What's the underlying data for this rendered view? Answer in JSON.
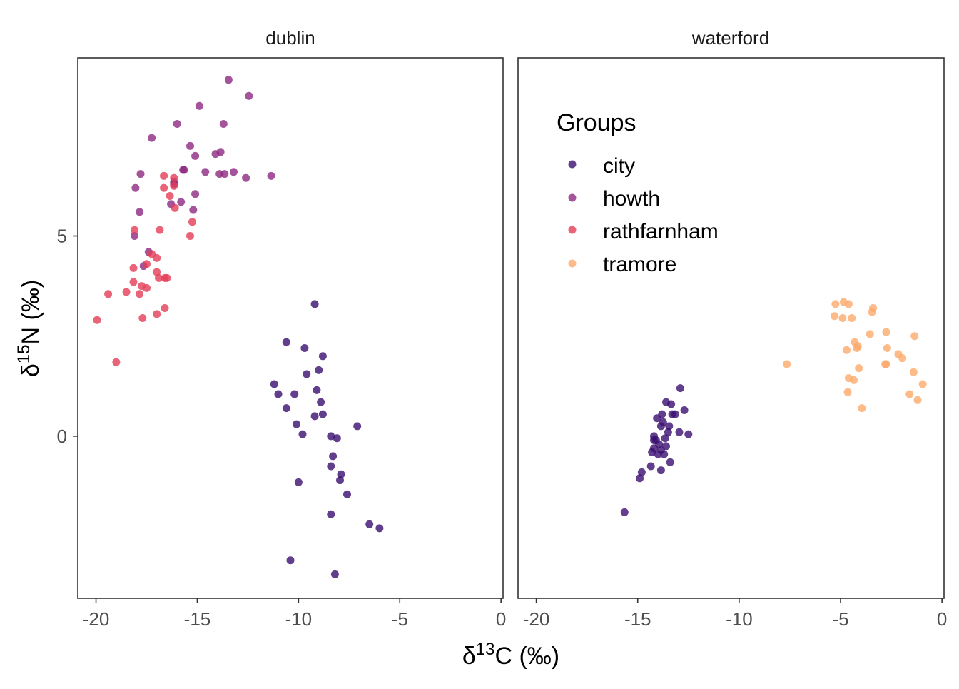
{
  "chart_data": {
    "type": "scatter",
    "xlabel_base": "δ",
    "xlabel_sup": "13",
    "xlabel_rest": "C (‰)",
    "ylabel_base": "δ",
    "ylabel_sup": "15",
    "ylabel_rest": "N (‰)",
    "xlim": [
      -20.9,
      0.1
    ],
    "ylim": [
      -4.05,
      9.45
    ],
    "xticks": [
      -20,
      -15,
      -10,
      -5,
      0
    ],
    "yticks": [
      0,
      5
    ],
    "legend": {
      "title": "Groups",
      "placement": "inside waterford panel, top-left",
      "entries": [
        {
          "name": "city",
          "color": "#3b0f70"
        },
        {
          "name": "howth",
          "color": "#8c2981"
        },
        {
          "name": "rathfarnham",
          "color": "#e43d56"
        },
        {
          "name": "tramore",
          "color": "#fdaa6c"
        }
      ]
    },
    "panels": [
      {
        "strip": "dublin",
        "series": [
          {
            "name": "city",
            "points": [
              [
                -9.2,
                3.3
              ],
              [
                -10.6,
                2.35
              ],
              [
                -9.7,
                2.2
              ],
              [
                -8.8,
                2.0
              ],
              [
                -9.6,
                1.55
              ],
              [
                -9.0,
                1.65
              ],
              [
                -11.2,
                1.3
              ],
              [
                -11.0,
                1.05
              ],
              [
                -10.2,
                1.05
              ],
              [
                -9.1,
                1.15
              ],
              [
                -8.9,
                0.85
              ],
              [
                -10.6,
                0.7
              ],
              [
                -9.2,
                0.5
              ],
              [
                -8.8,
                0.55
              ],
              [
                -10.1,
                0.3
              ],
              [
                -7.1,
                0.25
              ],
              [
                -9.8,
                0.05
              ],
              [
                -8.4,
                0.0
              ],
              [
                -8.1,
                -0.05
              ],
              [
                -8.3,
                -0.5
              ],
              [
                -8.4,
                -0.75
              ],
              [
                -7.9,
                -0.95
              ],
              [
                -10.0,
                -1.15
              ],
              [
                -7.95,
                -1.1
              ],
              [
                -7.6,
                -1.45
              ],
              [
                -8.4,
                -1.95
              ],
              [
                -6.5,
                -2.2
              ],
              [
                -6.0,
                -2.3
              ],
              [
                -10.4,
                -3.1
              ],
              [
                -8.2,
                -3.45
              ]
            ]
          },
          {
            "name": "howth",
            "points": [
              [
                -13.45,
                8.9
              ],
              [
                -12.45,
                8.5
              ],
              [
                -14.9,
                8.25
              ],
              [
                -13.7,
                7.8
              ],
              [
                -16.0,
                7.8
              ],
              [
                -17.25,
                7.45
              ],
              [
                -15.35,
                7.25
              ],
              [
                -15.1,
                7.0
              ],
              [
                -14.1,
                7.05
              ],
              [
                -13.85,
                7.1
              ],
              [
                -17.8,
                6.55
              ],
              [
                -15.7,
                6.65
              ],
              [
                -15.65,
                6.65
              ],
              [
                -14.6,
                6.6
              ],
              [
                -13.9,
                6.55
              ],
              [
                -13.65,
                6.55
              ],
              [
                -13.2,
                6.6
              ],
              [
                -12.6,
                6.45
              ],
              [
                -11.35,
                6.5
              ],
              [
                -16.15,
                6.35
              ],
              [
                -16.15,
                6.3
              ],
              [
                -18.05,
                6.2
              ],
              [
                -15.1,
                6.05
              ],
              [
                -15.8,
                5.85
              ],
              [
                -16.3,
                5.8
              ],
              [
                -15.2,
                5.65
              ],
              [
                -17.85,
                5.6
              ],
              [
                -18.1,
                5.0
              ],
              [
                -17.4,
                4.6
              ],
              [
                -17.65,
                4.25
              ]
            ]
          },
          {
            "name": "rathfarnham",
            "points": [
              [
                -16.65,
                6.5
              ],
              [
                -16.15,
                6.45
              ],
              [
                -16.15,
                6.25
              ],
              [
                -16.65,
                6.2
              ],
              [
                -16.35,
                6.0
              ],
              [
                -16.1,
                5.7
              ],
              [
                -15.25,
                5.35
              ],
              [
                -16.85,
                5.15
              ],
              [
                -18.1,
                5.15
              ],
              [
                -15.35,
                5.0
              ],
              [
                -17.25,
                4.55
              ],
              [
                -17.0,
                4.45
              ],
              [
                -17.5,
                4.3
              ],
              [
                -18.15,
                4.2
              ],
              [
                -17.0,
                4.1
              ],
              [
                -16.9,
                3.95
              ],
              [
                -16.6,
                3.95
              ],
              [
                -16.5,
                3.95
              ],
              [
                -18.15,
                3.85
              ],
              [
                -17.75,
                3.75
              ],
              [
                -17.5,
                3.7
              ],
              [
                -18.5,
                3.6
              ],
              [
                -19.4,
                3.55
              ],
              [
                -17.85,
                3.55
              ],
              [
                -16.6,
                3.2
              ],
              [
                -17.0,
                3.05
              ],
              [
                -17.7,
                2.95
              ],
              [
                -19.95,
                2.9
              ],
              [
                -19.0,
                1.85
              ]
            ]
          }
        ]
      },
      {
        "strip": "waterford",
        "series": [
          {
            "name": "city",
            "points": [
              [
                -12.9,
                1.2
              ],
              [
                -13.6,
                0.85
              ],
              [
                -13.35,
                0.8
              ],
              [
                -12.7,
                0.65
              ],
              [
                -13.8,
                0.55
              ],
              [
                -13.3,
                0.55
              ],
              [
                -13.15,
                0.55
              ],
              [
                -14.05,
                0.45
              ],
              [
                -13.75,
                0.35
              ],
              [
                -13.85,
                0.25
              ],
              [
                -13.45,
                0.25
              ],
              [
                -13.5,
                0.1
              ],
              [
                -12.95,
                0.1
              ],
              [
                -12.5,
                0.05
              ],
              [
                -14.2,
                0.0
              ],
              [
                -13.65,
                -0.05
              ],
              [
                -14.2,
                -0.1
              ],
              [
                -14.1,
                -0.1
              ],
              [
                -13.95,
                -0.2
              ],
              [
                -13.6,
                -0.25
              ],
              [
                -14.2,
                -0.3
              ],
              [
                -13.85,
                -0.35
              ],
              [
                -14.3,
                -0.4
              ],
              [
                -14.0,
                -0.45
              ],
              [
                -13.7,
                -0.45
              ],
              [
                -13.4,
                -0.65
              ],
              [
                -14.35,
                -0.75
              ],
              [
                -13.85,
                -0.85
              ],
              [
                -14.8,
                -0.9
              ],
              [
                -14.9,
                -1.05
              ],
              [
                -15.65,
                -1.9
              ]
            ]
          },
          {
            "name": "tramore",
            "points": [
              [
                -5.25,
                3.3
              ],
              [
                -4.85,
                3.35
              ],
              [
                -4.6,
                3.3
              ],
              [
                -3.4,
                3.2
              ],
              [
                -3.45,
                3.1
              ],
              [
                -5.3,
                3.0
              ],
              [
                -4.9,
                2.95
              ],
              [
                -4.45,
                2.95
              ],
              [
                -2.75,
                2.6
              ],
              [
                -3.55,
                2.55
              ],
              [
                -1.35,
                2.5
              ],
              [
                -4.3,
                2.35
              ],
              [
                -4.15,
                2.25
              ],
              [
                -4.2,
                2.2
              ],
              [
                -2.7,
                2.2
              ],
              [
                -4.7,
                2.15
              ],
              [
                -2.15,
                2.05
              ],
              [
                -1.95,
                1.95
              ],
              [
                -7.65,
                1.8
              ],
              [
                -2.8,
                1.8
              ],
              [
                -2.75,
                1.8
              ],
              [
                -4.1,
                1.7
              ],
              [
                -1.4,
                1.6
              ],
              [
                -4.6,
                1.45
              ],
              [
                -4.35,
                1.4
              ],
              [
                -0.95,
                1.3
              ],
              [
                -4.65,
                1.1
              ],
              [
                -1.6,
                1.05
              ],
              [
                -1.2,
                0.9
              ],
              [
                -3.95,
                0.7
              ]
            ]
          }
        ]
      }
    ]
  }
}
